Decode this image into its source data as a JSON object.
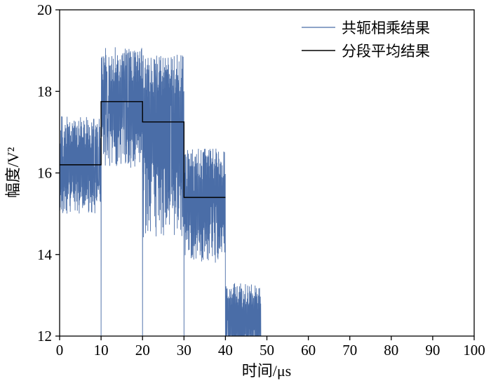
{
  "figure": {
    "background": "#ffffff",
    "frame_color": "#000000"
  },
  "chart_data": {
    "type": "line",
    "title": "",
    "xlabel": "时间/μs",
    "ylabel": "幅度/V²",
    "xlim": [
      0,
      100
    ],
    "ylim": [
      12,
      20
    ],
    "xticks": [
      0,
      10,
      20,
      30,
      40,
      50,
      60,
      70,
      80,
      90,
      100
    ],
    "yticks": [
      12,
      14,
      16,
      18,
      20
    ],
    "grid": false,
    "legend_position": "top-right-inside",
    "legend": [
      {
        "label": "共轭相乘结果",
        "color": "#4a6da7"
      },
      {
        "label": "分段平均结果",
        "color": "#000000"
      }
    ],
    "series": [
      {
        "name": "共轭相乘结果",
        "kind": "noisy-line",
        "color": "#4a6da7",
        "x_start": 0,
        "x_end": 48.6,
        "segments": [
          {
            "x0": 0,
            "x1": 10,
            "mean": 16.2,
            "min": 15.0,
            "max": 17.4
          },
          {
            "x0": 10,
            "x1": 20,
            "mean": 17.75,
            "min": 16.1,
            "max": 19.1
          },
          {
            "x0": 20,
            "x1": 30,
            "mean": 17.25,
            "min": 14.4,
            "max": 18.9
          },
          {
            "x0": 30,
            "x1": 40,
            "mean": 15.4,
            "min": 13.8,
            "max": 16.6
          },
          {
            "x0": 40,
            "x1": 48.6,
            "mean": 12.4,
            "min": 11.5,
            "max": 13.3
          }
        ],
        "boundary_dips_x": [
          10,
          20,
          30,
          40
        ],
        "dip_value": 11.6
      },
      {
        "name": "分段平均结果",
        "kind": "step-line",
        "color": "#000000",
        "steps": [
          {
            "x0": 0,
            "x1": 10,
            "y": 16.2
          },
          {
            "x0": 10,
            "x1": 20,
            "y": 17.75
          },
          {
            "x0": 20,
            "x1": 30,
            "y": 17.25
          },
          {
            "x0": 30,
            "x1": 40,
            "y": 15.4
          }
        ]
      }
    ]
  }
}
